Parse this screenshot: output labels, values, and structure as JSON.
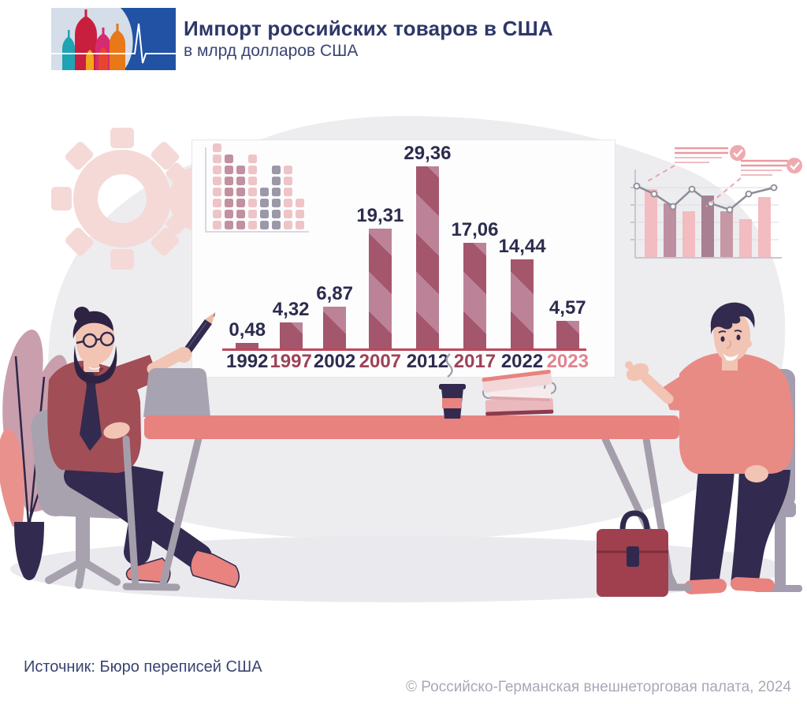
{
  "header": {
    "title": "Импорт российских товаров в США",
    "subtitle": "в млрд долларов США"
  },
  "chart_data": {
    "type": "bar",
    "title": "Импорт российских товаров в США",
    "ylabel": "млрд долларов США",
    "categories": [
      "1992",
      "1997",
      "2002",
      "2007",
      "2012",
      "2017",
      "2022",
      "2023"
    ],
    "values": [
      0.48,
      4.32,
      6.87,
      19.31,
      29.36,
      17.06,
      14.44,
      4.57
    ],
    "value_labels": [
      "0,48",
      "4,32",
      "6,87",
      "19,31",
      "29,36",
      "17,06",
      "14,44",
      "4,57"
    ],
    "category_label_colors": [
      "#2b2c4e",
      "#9e4257",
      "#2b2c4e",
      "#9e4257",
      "#2b2c4e",
      "#9e4257",
      "#2b2c4e",
      "#e2848f"
    ],
    "value_label_color": "#2b2c4e",
    "bar_fill": "#a4566d",
    "bar_stripe": "#bc8398",
    "axis_color": "#c0485a",
    "ylim": [
      0,
      30
    ],
    "grid": false,
    "legend": false
  },
  "decor": {
    "mini_chart_columns": [
      {
        "count": 8,
        "color": "#efc4c7"
      },
      {
        "count": 7,
        "color": "#c2919f"
      },
      {
        "count": 6,
        "color": "#c2919f"
      },
      {
        "count": 7,
        "color": "#efc4c7"
      },
      {
        "count": 4,
        "color": "#9b98a8"
      },
      {
        "count": 6,
        "color": "#9b98a8"
      },
      {
        "count": 6,
        "color": "#efc4c7"
      },
      {
        "count": 3,
        "color": "#efc4c7"
      }
    ]
  },
  "footer": {
    "source": "Источник: Бюро переписей США",
    "copyright": "© Российско-Германская внешнеторговая палата, 2024"
  }
}
